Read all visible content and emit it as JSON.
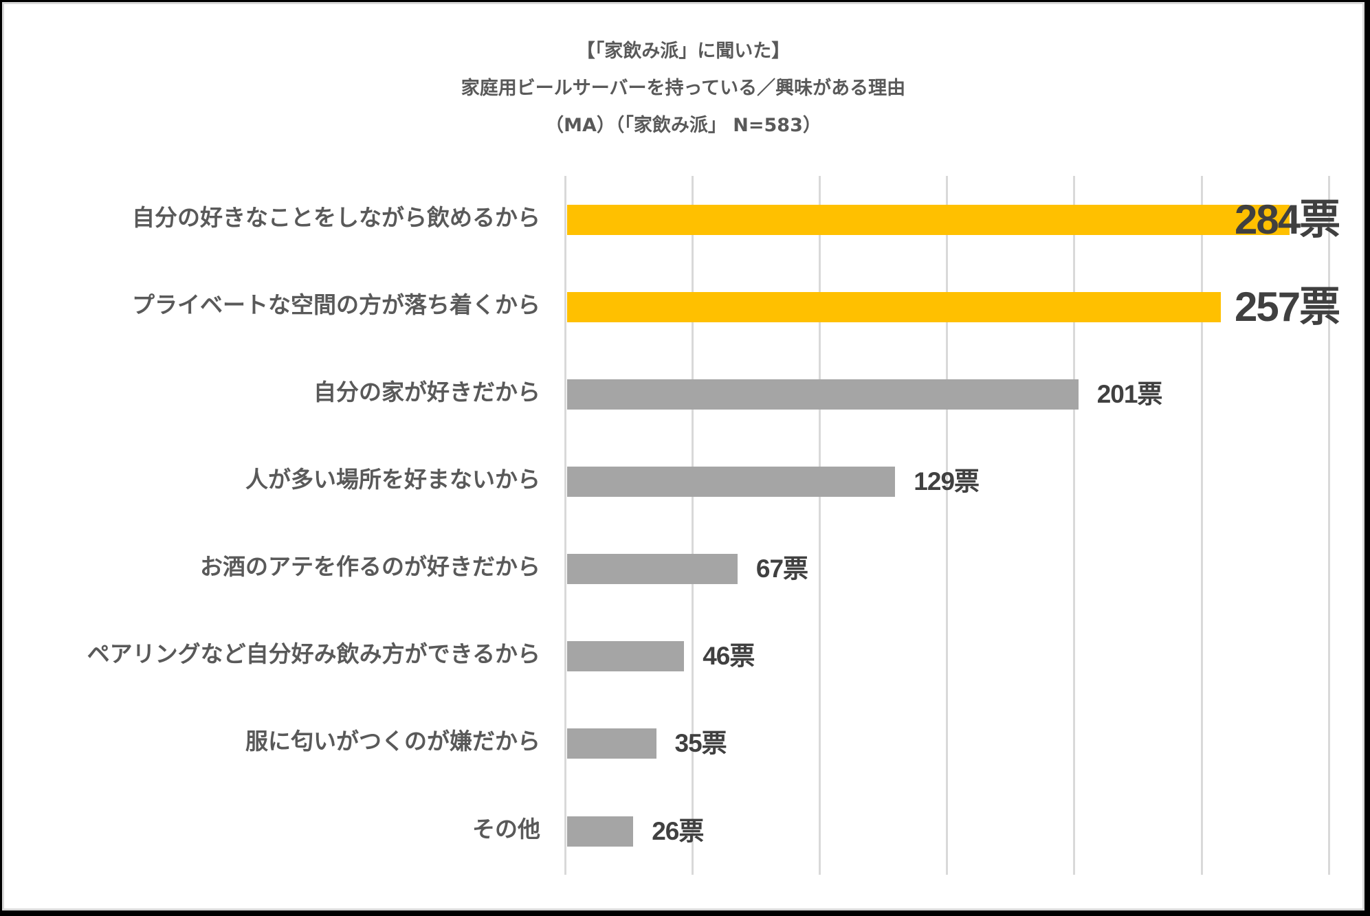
{
  "title": {
    "line1": "【「家飲み派」に聞いた】",
    "line2": "家庭用ビールサーバーを持っている／興味がある理由",
    "line3": "（MA）（「家飲み派」 N=583）"
  },
  "colors": {
    "highlight_bar": "#ffc000",
    "normal_bar": "#a5a5a5",
    "gridline": "#d9d9d9",
    "label_text": "#595959",
    "value_text": "#404040"
  },
  "chart_data": {
    "type": "bar",
    "orientation": "horizontal",
    "title": "【「家飲み派」に聞いた】 家庭用ビールサーバーを持っている／興味がある理由 （MA）（「家飲み派」 N=583）",
    "xlabel": "",
    "ylabel": "",
    "xlim": [
      0,
      300
    ],
    "grid": true,
    "gridline_values": [
      0,
      50,
      100,
      150,
      200,
      250,
      300
    ],
    "legend": null,
    "unit": "票",
    "categories": [
      "自分の好きなことをしながら飲めるから",
      "プライベートな空間の方が落ち着くから",
      "自分の家が好きだから",
      "人が多い場所を好まないから",
      "お酒のアテを作るのが好きだから",
      "ペアリングなど自分好み飲み方ができるから",
      "服に匂いがつくのが嫌だから",
      "その他"
    ],
    "values": [
      284,
      257,
      201,
      129,
      67,
      46,
      35,
      26
    ],
    "value_labels": [
      "284票",
      "257票",
      "201票",
      "129票",
      "67票",
      "46票",
      "35票",
      "26票"
    ],
    "highlighted": [
      true,
      true,
      false,
      false,
      false,
      false,
      false,
      false
    ]
  }
}
